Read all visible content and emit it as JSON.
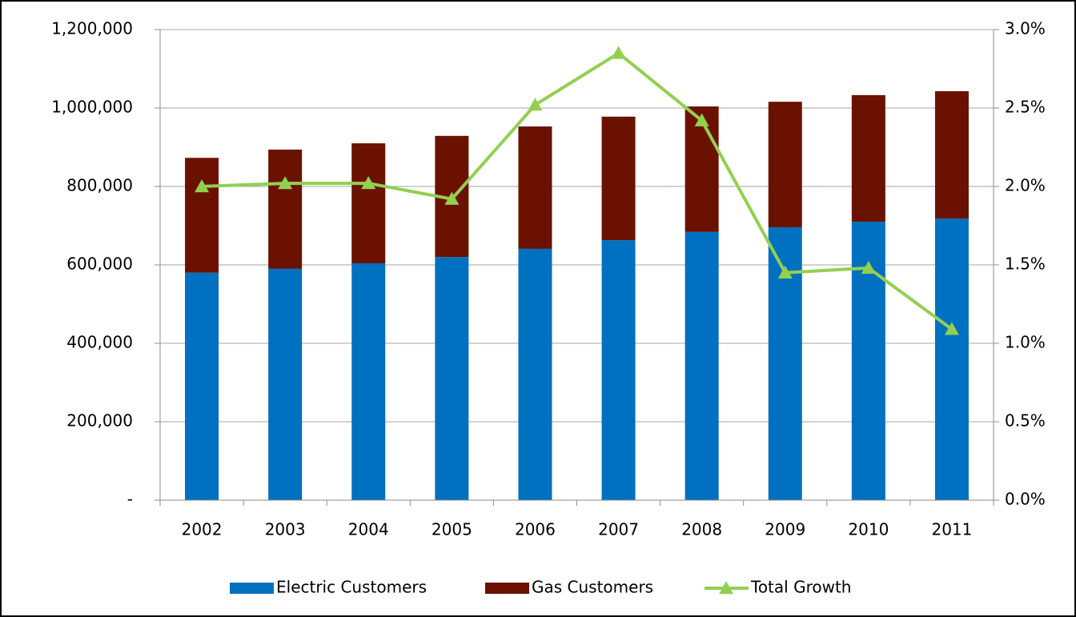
{
  "chart_data": {
    "type": "bar",
    "categories": [
      "2002",
      "2003",
      "2004",
      "2005",
      "2006",
      "2007",
      "2008",
      "2009",
      "2010",
      "2011"
    ],
    "stacked": true,
    "series": [
      {
        "name": "Electric Customers",
        "color": "#0070c0",
        "values": [
          580000,
          590000,
          604000,
          620000,
          641000,
          663000,
          684000,
          696000,
          710000,
          718000
        ]
      },
      {
        "name": "Gas Customers",
        "color": "#6b1100",
        "values": [
          293000,
          304000,
          306000,
          309000,
          312000,
          315000,
          320000,
          320000,
          323000,
          325000
        ]
      },
      {
        "name": "Total Growth",
        "color": "#92d050",
        "type": "line",
        "axis": "y2",
        "marker": "triangle",
        "values": [
          2.0,
          2.02,
          2.02,
          1.92,
          2.52,
          2.85,
          2.42,
          1.45,
          1.48,
          1.09
        ]
      }
    ],
    "ylim": [
      0,
      1200000
    ],
    "yticks": [
      {
        "value": 0,
        "label": "-"
      },
      {
        "value": 200000,
        "label": "200,000"
      },
      {
        "value": 400000,
        "label": "400,000"
      },
      {
        "value": 600000,
        "label": "600,000"
      },
      {
        "value": 800000,
        "label": "800,000"
      },
      {
        "value": 1000000,
        "label": "1,000,000"
      },
      {
        "value": 1200000,
        "label": "1,200,000"
      }
    ],
    "y2lim": [
      0,
      3
    ],
    "y2ticks": [
      {
        "value": 0,
        "label": "0.0%"
      },
      {
        "value": 0.5,
        "label": "0.5%"
      },
      {
        "value": 1,
        "label": "1.0%"
      },
      {
        "value": 1.5,
        "label": "1.5%"
      },
      {
        "value": 2,
        "label": "2.0%"
      },
      {
        "value": 2.5,
        "label": "2.5%"
      },
      {
        "value": 3,
        "label": "3.0%"
      }
    ],
    "grid": true,
    "legend": "bottom"
  }
}
